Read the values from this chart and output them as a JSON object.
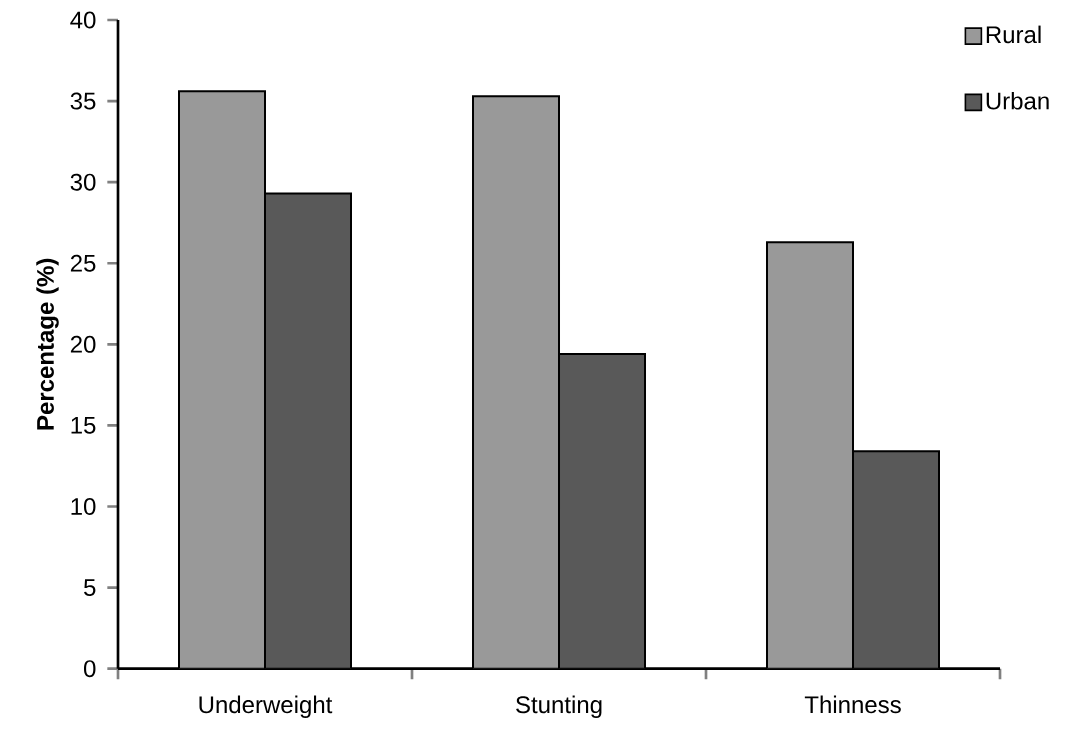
{
  "chart_data": {
    "type": "bar",
    "ylabel": "Percentage (%)",
    "categories": [
      "Underweight",
      "Stunting",
      "Thinness"
    ],
    "series": [
      {
        "name": "Rural",
        "color": "#999999",
        "values": [
          35.6,
          35.3,
          26.3
        ]
      },
      {
        "name": "Urban",
        "color": "#595959",
        "values": [
          29.3,
          19.4,
          13.4
        ]
      }
    ],
    "ylim": [
      0,
      40
    ],
    "yticks": [
      0,
      5,
      10,
      15,
      20,
      25,
      30,
      35,
      40
    ],
    "legend": "top right"
  }
}
